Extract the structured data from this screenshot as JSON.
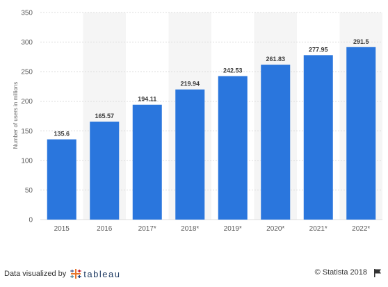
{
  "chart_data": {
    "type": "bar",
    "categories": [
      "2015",
      "2016",
      "2017*",
      "2018*",
      "2019*",
      "2020*",
      "2021*",
      "2022*"
    ],
    "values": [
      135.6,
      165.57,
      194.11,
      219.94,
      242.53,
      261.83,
      277.95,
      291.5
    ],
    "value_labels": [
      "135.6",
      "165.57",
      "194.11",
      "219.94",
      "242.53",
      "261.83",
      "277.95",
      "291.5"
    ],
    "ylabel": "Number of users in millions",
    "ylim": [
      0,
      350
    ],
    "yticks": [
      0,
      50,
      100,
      150,
      200,
      250,
      300,
      350
    ],
    "grid": true,
    "bar_color": "#2a76dd",
    "band_color": "#f5f5f5",
    "grid_color": "#dcdcdc"
  },
  "footer": {
    "credit_text": "Data visualized by",
    "tableau_text": "tableau",
    "copyright_text": "© Statista 2018"
  }
}
